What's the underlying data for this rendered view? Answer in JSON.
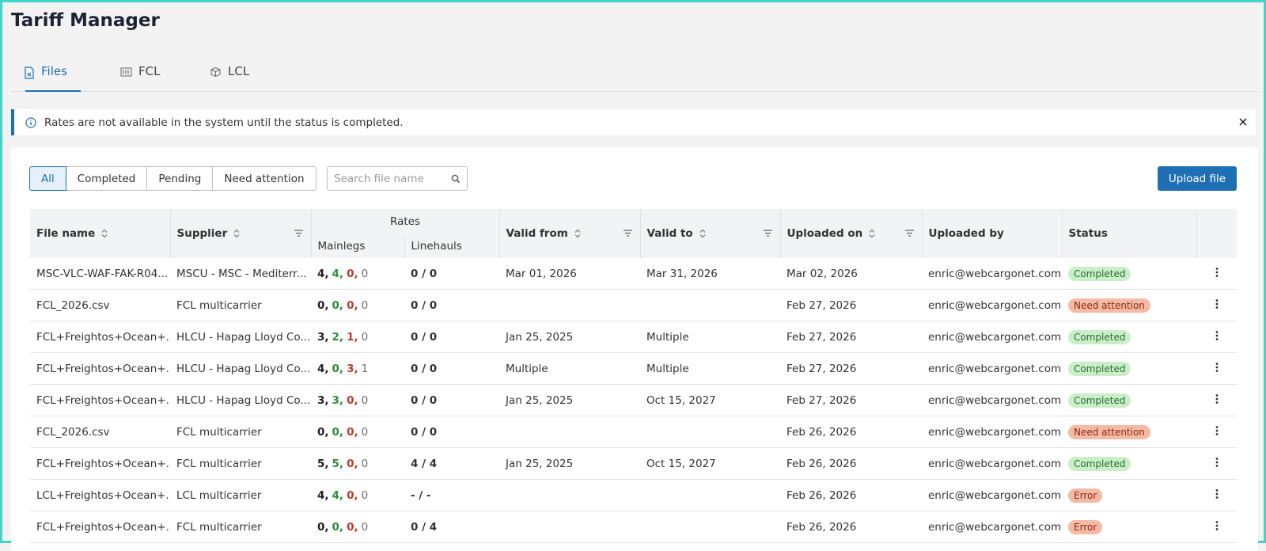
{
  "header": {
    "title": "Tariff Manager"
  },
  "tabs": [
    "Files",
    "FCL",
    "LCL"
  ],
  "alert": "Rates are not available in the system until the status is completed.",
  "filters": [
    "All",
    "Completed",
    "Pending",
    "Need attention"
  ],
  "search_placeholder": "Search file name",
  "upload_button": "Upload file",
  "table": {
    "group_header": "Rates",
    "columns": [
      "File name",
      "Supplier",
      "Mainlegs",
      "Linehauls",
      "Valid from",
      "Valid to",
      "Uploaded on",
      "Uploaded by",
      "Status"
    ],
    "mainlegs_colors": [
      "#1f1f1f",
      "#2e8b3a",
      "#c0392b",
      "#6b6b6b"
    ],
    "rows": [
      {
        "file_name": "MSC-VLC-WAF-FAK-R04...",
        "supplier": "MSCU - MSC - Mediterr...",
        "mainlegs": [
          "4,",
          "4,",
          "0,",
          "0"
        ],
        "linehauls": "0 / 0",
        "valid_from": "Mar 01, 2026",
        "valid_to": "Mar 31, 2026",
        "uploaded_on": "Mar 02, 2026",
        "uploaded_by": "enric@webcargonet.com",
        "status": "Completed",
        "status_color": "#c9efc9",
        "status_text_color": "#2f6b34"
      },
      {
        "file_name": "FCL_2026.csv",
        "supplier": "FCL multicarrier",
        "mainlegs": [
          "0,",
          "0,",
          "0,",
          "0"
        ],
        "linehauls": "0 / 0",
        "valid_from": null,
        "valid_to": null,
        "uploaded_on": "Feb 27, 2026",
        "uploaded_by": "enric@webcargonet.com",
        "status": "Need attention",
        "status_color": "#f6b9a4",
        "status_text_color": "#8a2b12"
      },
      {
        "file_name": "FCL+Freightos+Ocean+...",
        "supplier": "HLCU - Hapag Lloyd Co...",
        "mainlegs": [
          "3,",
          "2,",
          "1,",
          "0"
        ],
        "linehauls": "0 / 0",
        "valid_from": "Jan 25, 2025",
        "valid_to": "Multiple",
        "uploaded_on": "Feb 27, 2026",
        "uploaded_by": "enric@webcargonet.com",
        "status": "Completed",
        "status_color": "#c9efc9",
        "status_text_color": "#2f6b34"
      },
      {
        "file_name": "FCL+Freightos+Ocean+...",
        "supplier": "HLCU - Hapag Lloyd Co...",
        "mainlegs": [
          "4,",
          "0,",
          "3,",
          "1"
        ],
        "linehauls": "0 / 0",
        "valid_from": "Multiple",
        "valid_to": "Multiple",
        "uploaded_on": "Feb 27, 2026",
        "uploaded_by": "enric@webcargonet.com",
        "status": "Completed",
        "status_color": "#c9efc9",
        "status_text_color": "#2f6b34"
      },
      {
        "file_name": "FCL+Freightos+Ocean+...",
        "supplier": "HLCU - Hapag Lloyd Co...",
        "mainlegs": [
          "3,",
          "3,",
          "0,",
          "0"
        ],
        "linehauls": "0 / 0",
        "valid_from": "Jan 25, 2025",
        "valid_to": "Oct 15, 2027",
        "uploaded_on": "Feb 27, 2026",
        "uploaded_by": "enric@webcargonet.com",
        "status": "Completed",
        "status_color": "#c9efc9",
        "status_text_color": "#2f6b34"
      },
      {
        "file_name": "FCL_2026.csv",
        "supplier": "FCL multicarrier",
        "mainlegs": [
          "0,",
          "0,",
          "0,",
          "0"
        ],
        "linehauls": "0 / 0",
        "valid_from": null,
        "valid_to": null,
        "uploaded_on": "Feb 26, 2026",
        "uploaded_by": "enric@webcargonet.com",
        "status": "Need attention",
        "status_color": "#f6b9a4",
        "status_text_color": "#8a2b12"
      },
      {
        "file_name": "FCL+Freightos+Ocean+...",
        "supplier": "FCL multicarrier",
        "mainlegs": [
          "5,",
          "5,",
          "0,",
          "0"
        ],
        "linehauls": "4 / 4",
        "valid_from": "Jan 25, 2025",
        "valid_to": "Oct 15, 2027",
        "uploaded_on": "Feb 26, 2026",
        "uploaded_by": "enric@webcargonet.com",
        "status": "Completed",
        "status_color": "#c9efc9",
        "status_text_color": "#2f6b34"
      },
      {
        "file_name": "LCL+Freightos+Ocean+...",
        "supplier": "LCL multicarrier",
        "mainlegs": [
          "4,",
          "4,",
          "0,",
          "0"
        ],
        "linehauls": "- / -",
        "valid_from": null,
        "valid_to": null,
        "uploaded_on": "Feb 26, 2026",
        "uploaded_by": "enric@webcargonet.com",
        "status": "Error",
        "status_color": "#f6b9a4",
        "status_text_color": "#8a2b12"
      },
      {
        "file_name": "FCL+Freightos+Ocean+...",
        "supplier": "FCL multicarrier",
        "mainlegs": [
          "0,",
          "0,",
          "0,",
          "0"
        ],
        "linehauls": "0 / 4",
        "valid_from": null,
        "valid_to": null,
        "uploaded_on": "Feb 26, 2026",
        "uploaded_by": "enric@webcargonet.com",
        "status": "Error",
        "status_color": "#f6b9a4",
        "status_text_color": "#8a2b12"
      }
    ]
  }
}
